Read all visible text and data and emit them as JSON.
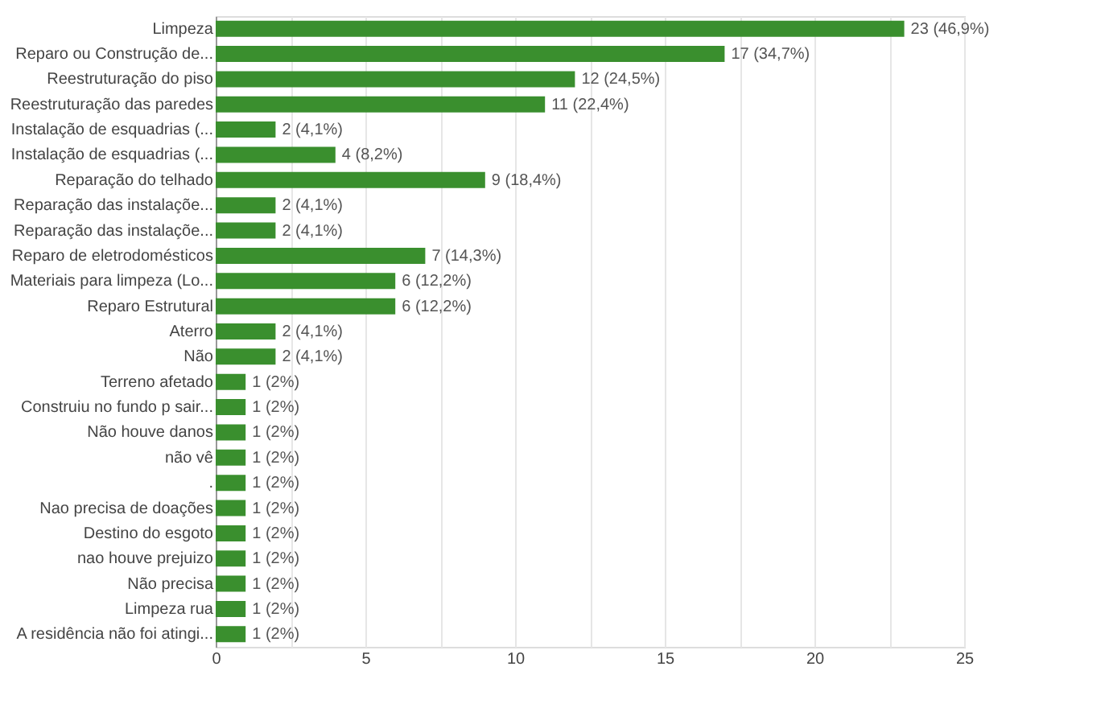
{
  "chart_data": {
    "type": "bar",
    "orientation": "horizontal",
    "categories": [
      "Limpeza",
      "Reparo ou Construção de...",
      "Reestruturação do piso",
      "Reestruturação das paredes",
      "Instalação de esquadrias (...",
      "Instalação de esquadrias (...",
      "Reparação do telhado",
      "Reparação das instalaçõe...",
      "Reparação das instalaçõe...",
      "Reparo de eletrodomésticos",
      "Materiais para limpeza (Lo...",
      "Reparo Estrutural",
      "Aterro",
      "Não",
      "Terreno afetado",
      "Construiu no fundo p sair...",
      "Não houve danos",
      "não vê",
      ".",
      "Nao precisa de doações",
      "Destino do esgoto",
      "nao houve prejuizo",
      "Não precisa",
      "Limpeza rua",
      "A residência não foi atingi..."
    ],
    "values": [
      23,
      17,
      12,
      11,
      2,
      4,
      9,
      2,
      2,
      7,
      6,
      6,
      2,
      2,
      1,
      1,
      1,
      1,
      1,
      1,
      1,
      1,
      1,
      1,
      1
    ],
    "value_labels": [
      "23 (46,9%)",
      "17 (34,7%)",
      "12 (24,5%)",
      "11 (22,4%)",
      "2 (4,1%)",
      "4 (8,2%)",
      "9 (18,4%)",
      "2 (4,1%)",
      "2 (4,1%)",
      "7 (14,3%)",
      "6 (12,2%)",
      "6 (12,2%)",
      "2 (4,1%)",
      "2 (4,1%)",
      "1 (2%)",
      "1 (2%)",
      "1 (2%)",
      "1 (2%)",
      "1 (2%)",
      "1 (2%)",
      "1 (2%)",
      "1 (2%)",
      "1 (2%)",
      "1 (2%)",
      "1 (2%)"
    ],
    "color": "#3a8f2e",
    "xlim": [
      0,
      25
    ],
    "xticks": [
      0,
      {
        "value": 2.5,
        "label": null
      },
      5,
      {
        "value": 7.5,
        "label": null
      },
      10,
      {
        "value": 12.5,
        "label": null
      },
      15,
      {
        "value": 17.5,
        "label": null
      },
      20,
      {
        "value": 22.5,
        "label": null
      },
      25
    ],
    "grid": true
  }
}
